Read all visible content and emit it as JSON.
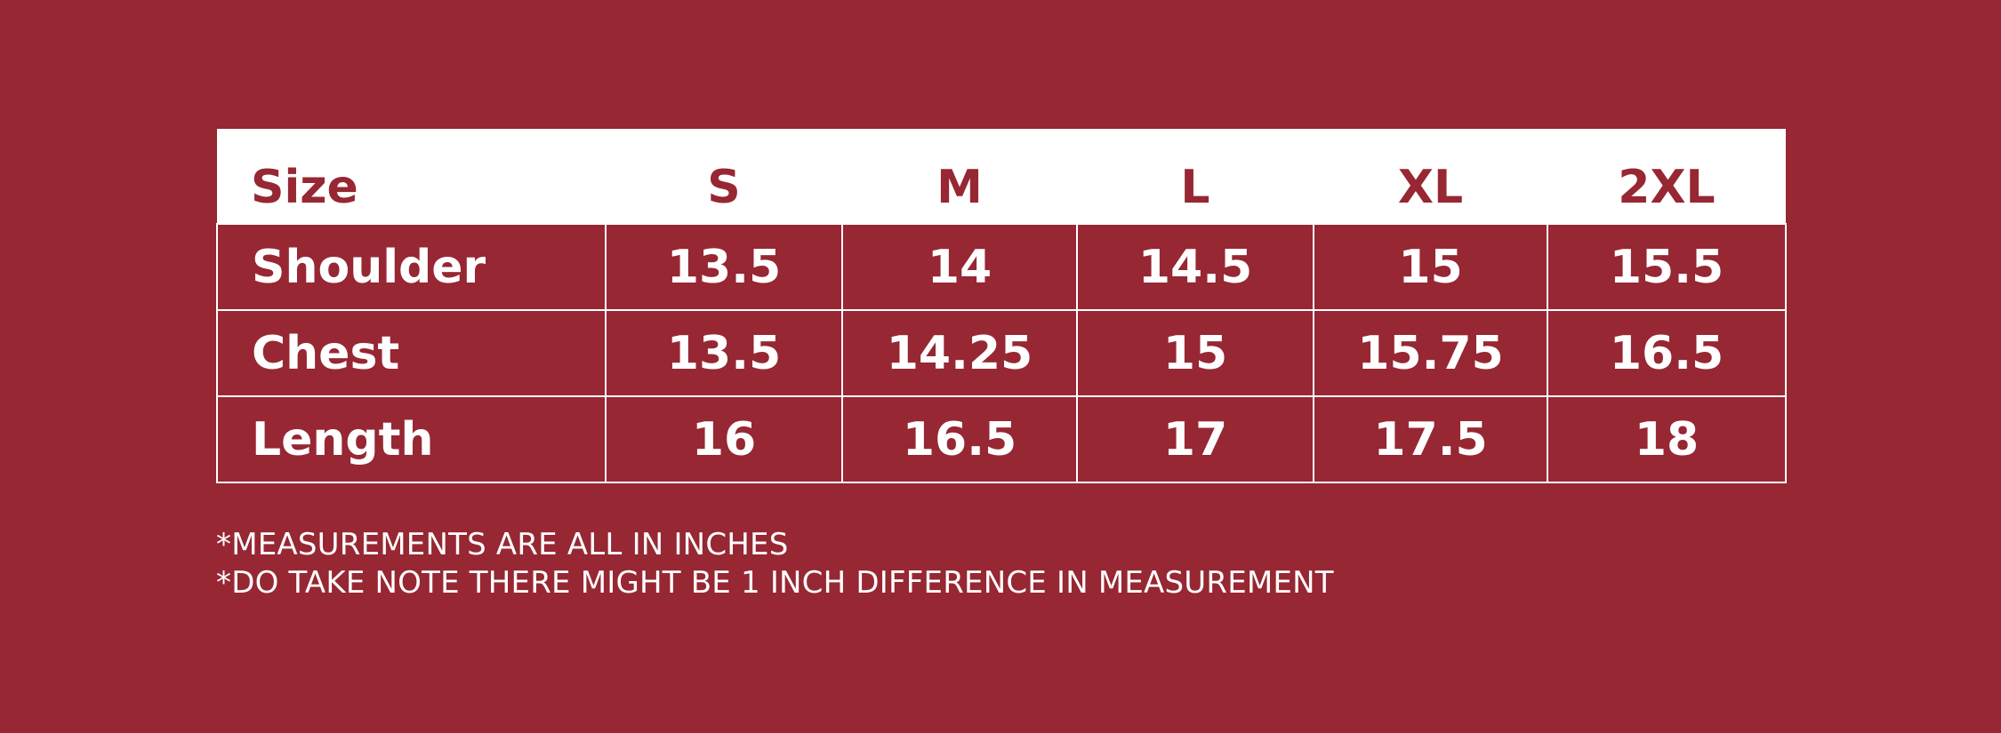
{
  "colors": {
    "background": "#962733",
    "header_background": "#ffffff",
    "text_light": "#ffffff",
    "text_accent": "#962733"
  },
  "table": {
    "header": {
      "label": "Size",
      "sizes": [
        "S",
        "M",
        "L",
        "XL",
        "2XL"
      ]
    },
    "rows": [
      {
        "label": "Shoulder",
        "values": [
          "13.5",
          "14",
          "14.5",
          "15",
          "15.5"
        ]
      },
      {
        "label": "Chest",
        "values": [
          "13.5",
          "14.25",
          "15",
          "15.75",
          "16.5"
        ]
      },
      {
        "label": "Length",
        "values": [
          "16",
          "16.5",
          "17",
          "17.5",
          "18"
        ]
      }
    ]
  },
  "notes": [
    "*MEASUREMENTS ARE ALL IN INCHES",
    "*DO TAKE NOTE THERE MIGHT BE 1 INCH DIFFERENCE IN MEASUREMENT"
  ]
}
